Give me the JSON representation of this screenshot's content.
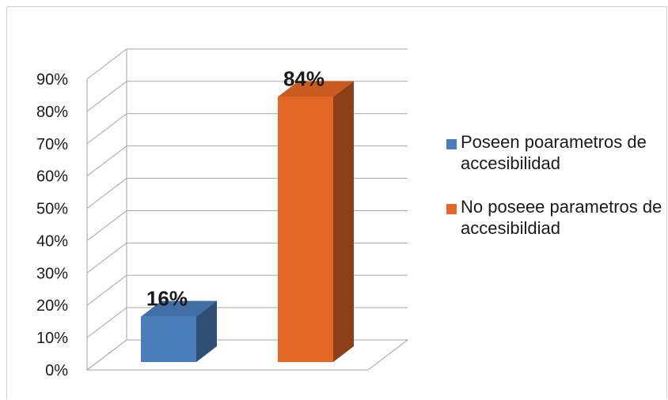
{
  "chart_data": {
    "type": "bar",
    "title": "",
    "xlabel": "",
    "ylabel": "",
    "ylim": [
      0,
      90
    ],
    "yticks": [
      0,
      10,
      20,
      30,
      40,
      50,
      60,
      70,
      80,
      90
    ],
    "ytick_labels": [
      "0%",
      "10%",
      "20%",
      "30%",
      "40%",
      "50%",
      "60%",
      "70%",
      "80%",
      "90%"
    ],
    "categories": [
      "Poseen poarametros de accesibilidad",
      "No poseee parametros de accesibildiad"
    ],
    "values": [
      16,
      84
    ],
    "data_labels": [
      "16%",
      "84%"
    ],
    "colors": [
      "#4a7ebb",
      "#e46726"
    ],
    "grid": true,
    "legend_placement": "right",
    "style": "3d-column"
  },
  "legend": {
    "items": [
      {
        "label": "Poseen poarametros de accesibilidad",
        "color": "#4a7ebb"
      },
      {
        "label": "No poseee parametros de accesibildiad",
        "color": "#e46726"
      }
    ]
  }
}
